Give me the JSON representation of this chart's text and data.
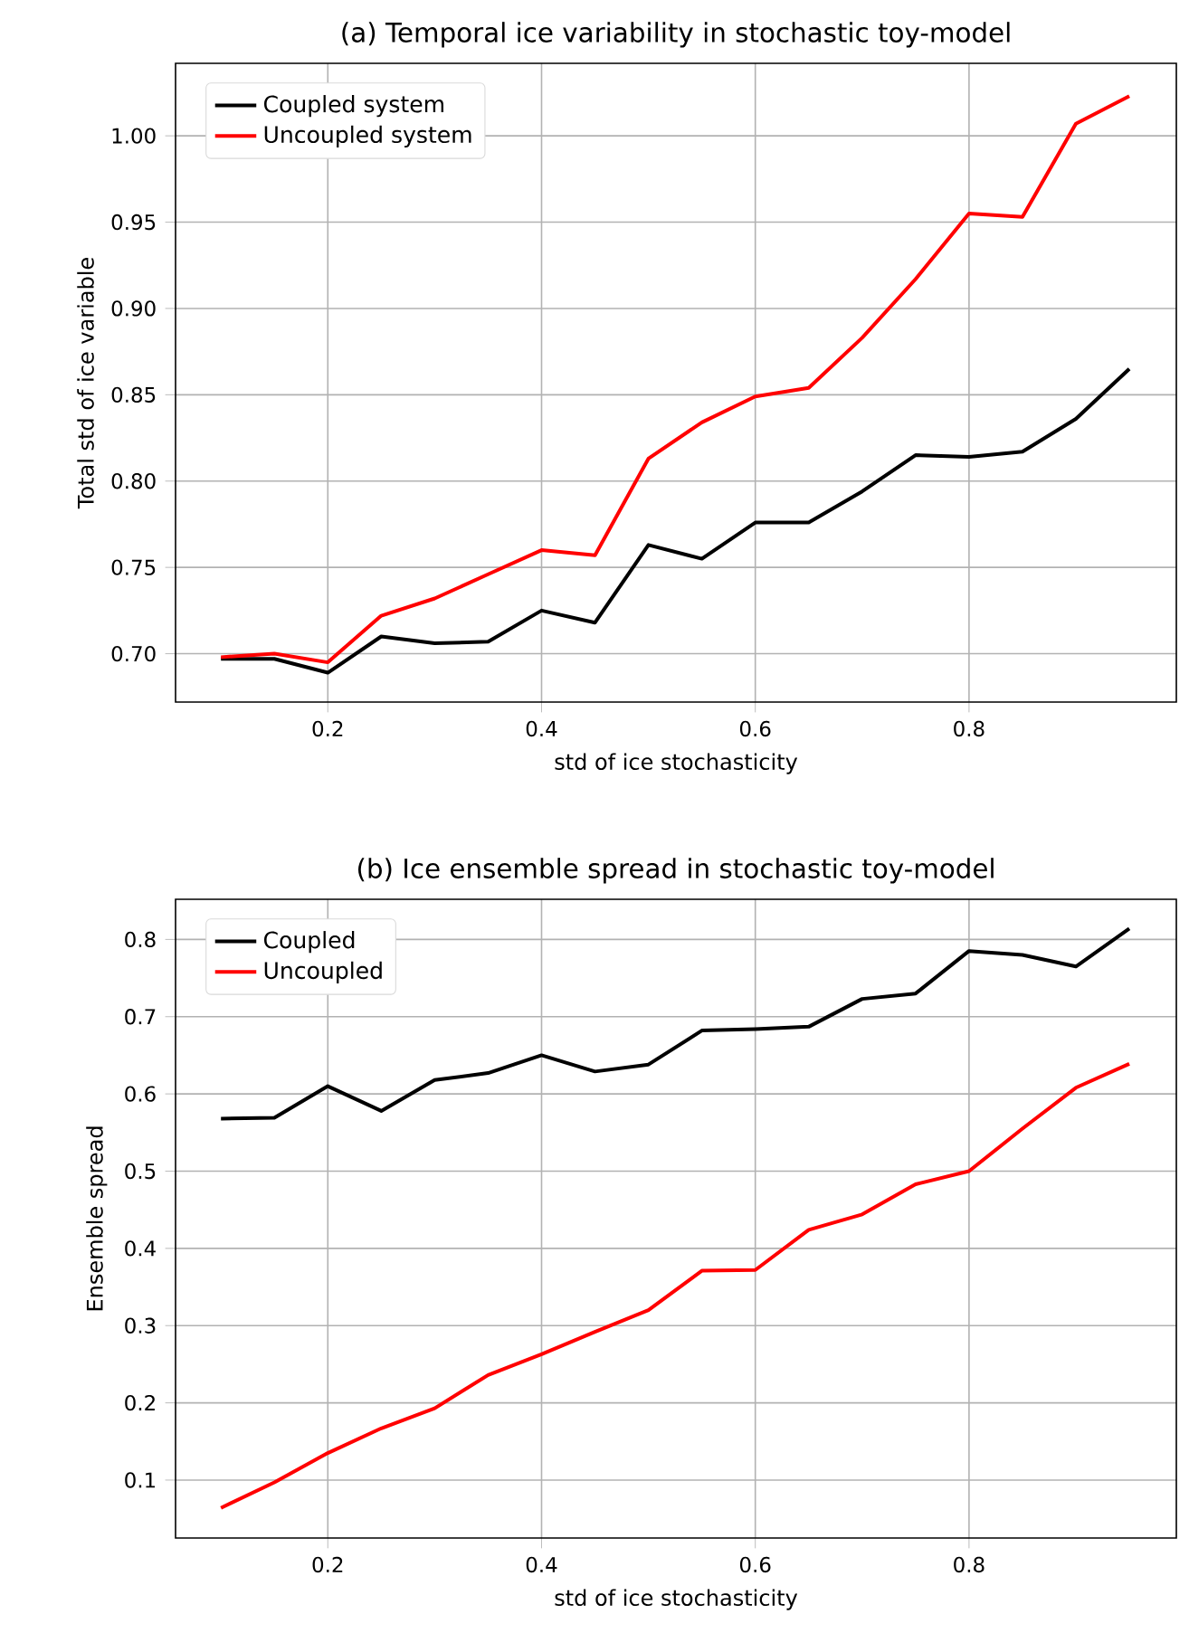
{
  "chart_data": [
    {
      "type": "line",
      "title": "(a) Temporal ice variability in stochastic toy-model",
      "xlabel": "std of ice stochasticity",
      "ylabel": "Total std of ice variable",
      "x": [
        0.1,
        0.15,
        0.2,
        0.25,
        0.3,
        0.35,
        0.4,
        0.45,
        0.5,
        0.55,
        0.6,
        0.65,
        0.7,
        0.75,
        0.8,
        0.85,
        0.9,
        0.95
      ],
      "series": [
        {
          "name": "Coupled system",
          "color": "#000000",
          "values": [
            0.697,
            0.697,
            0.689,
            0.71,
            0.706,
            0.707,
            0.725,
            0.718,
            0.763,
            0.755,
            0.776,
            0.776,
            0.794,
            0.815,
            0.814,
            0.817,
            0.836,
            0.865
          ]
        },
        {
          "name": "Uncoupled system",
          "color": "#ff0000",
          "values": [
            0.698,
            0.7,
            0.695,
            0.722,
            0.732,
            0.746,
            0.76,
            0.757,
            0.813,
            0.834,
            0.849,
            0.854,
            0.883,
            0.917,
            0.955,
            0.953,
            1.007,
            1.023
          ]
        }
      ],
      "xlim": [
        0.0575,
        0.994
      ],
      "ylim": [
        0.672,
        1.042
      ],
      "xticks": [
        0.2,
        0.4,
        0.6,
        0.8
      ],
      "yticks": [
        {
          "value": 0.7,
          "label": "0.70"
        },
        {
          "value": 0.75,
          "label": "0.75"
        },
        {
          "value": 0.8,
          "label": "0.80"
        },
        {
          "value": 0.85,
          "label": "0.85"
        },
        {
          "value": 0.9,
          "label": "0.90"
        },
        {
          "value": 0.95,
          "label": "0.95"
        },
        {
          "value": 1.0,
          "label": "1.00"
        }
      ],
      "grid": true,
      "legend": "top left"
    },
    {
      "type": "line",
      "title": "(b) Ice ensemble spread in stochastic toy-model",
      "xlabel": "std of ice stochasticity",
      "ylabel": "Ensemble spread",
      "x": [
        0.1,
        0.15,
        0.2,
        0.25,
        0.3,
        0.35,
        0.4,
        0.45,
        0.5,
        0.55,
        0.6,
        0.65,
        0.7,
        0.75,
        0.8,
        0.85,
        0.9,
        0.95
      ],
      "series": [
        {
          "name": "Coupled",
          "color": "#000000",
          "values": [
            0.568,
            0.569,
            0.61,
            0.578,
            0.618,
            0.627,
            0.65,
            0.629,
            0.638,
            0.682,
            0.684,
            0.687,
            0.723,
            0.73,
            0.785,
            0.78,
            0.765,
            0.814
          ]
        },
        {
          "name": "Uncoupled",
          "color": "#ff0000",
          "values": [
            0.064,
            0.097,
            0.135,
            0.167,
            0.193,
            0.236,
            0.263,
            0.292,
            0.32,
            0.371,
            0.372,
            0.424,
            0.444,
            0.483,
            0.5,
            0.555,
            0.608,
            0.639
          ]
        }
      ],
      "xlim": [
        0.0575,
        0.994
      ],
      "ylim": [
        0.025,
        0.852
      ],
      "xticks": [
        0.2,
        0.4,
        0.6,
        0.8
      ],
      "yticks": [
        0.1,
        0.2,
        0.3,
        0.4,
        0.5,
        0.6,
        0.7,
        0.8
      ],
      "grid": true,
      "legend": "top left"
    }
  ]
}
